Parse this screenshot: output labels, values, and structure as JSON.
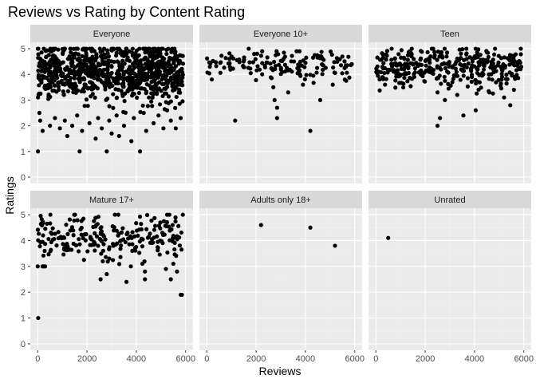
{
  "chart_data": {
    "type": "scatter",
    "title": "Reviews vs Rating by Content Rating",
    "xlabel": "Reviews",
    "ylabel": "Ratings",
    "xlim": [
      -300,
      6300
    ],
    "ylim": [
      -0.25,
      5.25
    ],
    "x_ticks": [
      0,
      2000,
      4000,
      6000
    ],
    "y_ticks": [
      0,
      1,
      2,
      3,
      4,
      5
    ],
    "grid": true,
    "legend": "none",
    "point_color": "#000000",
    "panel_background": "#ebebeb",
    "strip_background": "#d9d9d9",
    "facets": [
      {
        "label": "Everyone",
        "density": {
          "count": 900,
          "x_range": [
            0,
            5900
          ],
          "y_center": 4.1,
          "y_spread": 0.55,
          "y_min": 2.5,
          "y_max": 5
        },
        "points": [
          {
            "x": 10,
            "y": 1
          },
          {
            "x": 1700,
            "y": 1
          },
          {
            "x": 2800,
            "y": 1
          },
          {
            "x": 4150,
            "y": 1
          },
          {
            "x": 3800,
            "y": 1.4
          },
          {
            "x": 1200,
            "y": 1.6
          },
          {
            "x": 2350,
            "y": 1.5
          },
          {
            "x": 3300,
            "y": 1.6
          },
          {
            "x": 200,
            "y": 1.8
          },
          {
            "x": 900,
            "y": 1.9
          },
          {
            "x": 1800,
            "y": 1.8
          },
          {
            "x": 2600,
            "y": 1.9
          },
          {
            "x": 3000,
            "y": 1.7
          },
          {
            "x": 4400,
            "y": 1.8
          },
          {
            "x": 5100,
            "y": 1.9
          },
          {
            "x": 5600,
            "y": 1.9
          },
          {
            "x": 500,
            "y": 2
          },
          {
            "x": 1400,
            "y": 2
          },
          {
            "x": 2100,
            "y": 2.1
          },
          {
            "x": 3500,
            "y": 2
          },
          {
            "x": 4700,
            "y": 2.1
          },
          {
            "x": 5400,
            "y": 2.2
          },
          {
            "x": 5800,
            "y": 2.3
          },
          {
            "x": 100,
            "y": 2.2
          },
          {
            "x": 700,
            "y": 2.3
          },
          {
            "x": 1100,
            "y": 2.2
          },
          {
            "x": 1600,
            "y": 2.4
          },
          {
            "x": 2450,
            "y": 2.3
          },
          {
            "x": 2900,
            "y": 2.2
          },
          {
            "x": 3200,
            "y": 2.4
          },
          {
            "x": 3900,
            "y": 2.3
          },
          {
            "x": 4300,
            "y": 2.5
          },
          {
            "x": 4900,
            "y": 2.4
          },
          {
            "x": 5250,
            "y": 2.6
          }
        ]
      },
      {
        "label": "Everyone 10+",
        "density": {
          "count": 150,
          "x_range": [
            0,
            5900
          ],
          "y_center": 4.35,
          "y_spread": 0.3,
          "y_min": 3.6,
          "y_max": 4.9
        },
        "points": [
          {
            "x": 1150,
            "y": 2.2
          },
          {
            "x": 2850,
            "y": 2.3
          },
          {
            "x": 2750,
            "y": 3
          },
          {
            "x": 2850,
            "y": 2.7
          },
          {
            "x": 4200,
            "y": 1.8
          },
          {
            "x": 4600,
            "y": 3
          },
          {
            "x": 1700,
            "y": 5
          },
          {
            "x": 2700,
            "y": 3.5
          },
          {
            "x": 3300,
            "y": 3.3
          },
          {
            "x": 3900,
            "y": 3.6
          },
          {
            "x": 5600,
            "y": 3.8
          }
        ]
      },
      {
        "label": "Teen",
        "density": {
          "count": 360,
          "x_range": [
            0,
            5900
          ],
          "y_center": 4.25,
          "y_spread": 0.38,
          "y_min": 3.1,
          "y_max": 5
        },
        "points": [
          {
            "x": 2500,
            "y": 2
          },
          {
            "x": 2600,
            "y": 2.3
          },
          {
            "x": 3550,
            "y": 2.4
          },
          {
            "x": 4050,
            "y": 2.6
          },
          {
            "x": 5450,
            "y": 2.8
          },
          {
            "x": 2800,
            "y": 3
          },
          {
            "x": 5200,
            "y": 3.1
          },
          {
            "x": 4600,
            "y": 3.3
          },
          {
            "x": 2500,
            "y": 3.3
          },
          {
            "x": 3300,
            "y": 3.2
          }
        ]
      },
      {
        "label": "Mature 17+",
        "density": {
          "count": 230,
          "x_range": [
            0,
            5900
          ],
          "y_center": 4.15,
          "y_spread": 0.45,
          "y_min": 3.0,
          "y_max": 5
        },
        "points": [
          {
            "x": 20,
            "y": 1
          },
          {
            "x": 5800,
            "y": 1.9
          },
          {
            "x": 5850,
            "y": 1.9
          },
          {
            "x": 3600,
            "y": 2.4
          },
          {
            "x": 2550,
            "y": 2.5
          },
          {
            "x": 4350,
            "y": 2.5
          },
          {
            "x": 5400,
            "y": 2.5
          },
          {
            "x": 4350,
            "y": 2.8
          },
          {
            "x": 2800,
            "y": 2.7
          },
          {
            "x": 5200,
            "y": 2.9
          },
          {
            "x": 5650,
            "y": 2.8
          },
          {
            "x": 0,
            "y": 3
          },
          {
            "x": 300,
            "y": 3
          },
          {
            "x": 2900,
            "y": 3.3
          },
          {
            "x": 5500,
            "y": 3.1
          }
        ]
      },
      {
        "label": "Adults only 18+",
        "points": [
          {
            "x": 2200,
            "y": 4.6
          },
          {
            "x": 4200,
            "y": 4.5
          },
          {
            "x": 5200,
            "y": 3.8
          }
        ]
      },
      {
        "label": "Unrated",
        "points": [
          {
            "x": 500,
            "y": 4.1
          }
        ]
      }
    ]
  }
}
